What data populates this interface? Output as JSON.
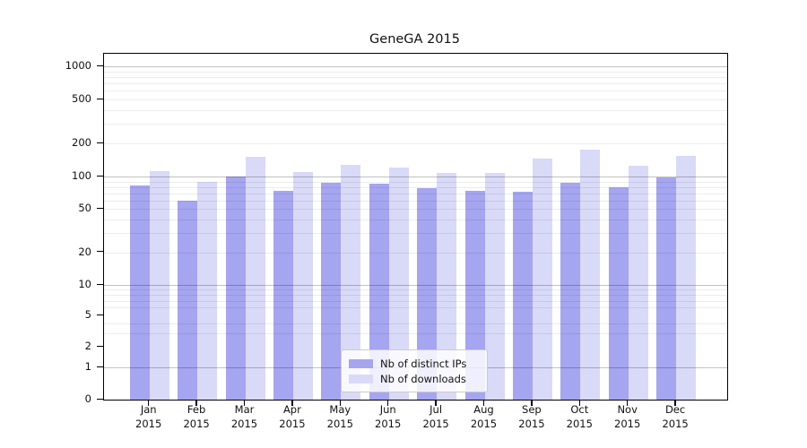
{
  "title": "GeneGA 2015",
  "chart_data": {
    "type": "bar",
    "title": "GeneGA 2015",
    "xlabel": "",
    "ylabel": "",
    "x_tick_month_labels": [
      "Jan",
      "Feb",
      "Mar",
      "Apr",
      "May",
      "Jun",
      "Jul",
      "Aug",
      "Sep",
      "Oct",
      "Nov",
      "Dec"
    ],
    "x_tick_year_label": "2015",
    "categories": [
      "Jan 2015",
      "Feb 2015",
      "Mar 2015",
      "Apr 2015",
      "May 2015",
      "Jun 2015",
      "Jul 2015",
      "Aug 2015",
      "Sep 2015",
      "Oct 2015",
      "Nov 2015",
      "Dec 2015"
    ],
    "series": [
      {
        "name": "Nb of distinct IPs",
        "color": "#a5a5f0",
        "values": [
          82,
          60,
          100,
          74,
          88,
          86,
          78,
          74,
          73,
          87,
          80,
          98
        ]
      },
      {
        "name": "Nb of downloads",
        "color": "#d9d9f8",
        "values": [
          112,
          90,
          150,
          110,
          127,
          121,
          108,
          107,
          145,
          175,
          125,
          153
        ]
      }
    ],
    "y_scale": "symlog",
    "y_ticks": [
      0,
      1,
      2,
      5,
      10,
      20,
      50,
      100,
      200,
      500,
      1000
    ],
    "y_minor_gridlines": [
      3,
      4,
      6,
      7,
      8,
      9,
      20,
      30,
      40,
      50,
      60,
      70,
      80,
      90,
      200,
      300,
      400,
      500,
      600,
      700,
      800,
      900
    ],
    "y_major_gridlines": [
      1,
      10,
      100,
      1000
    ],
    "ylim": [
      0,
      1400
    ],
    "grid": true,
    "legend_position": "lower center",
    "axis_color": "#000000",
    "major_grid_color": "#c2c2c2",
    "minor_grid_color": "#ebebeb"
  }
}
